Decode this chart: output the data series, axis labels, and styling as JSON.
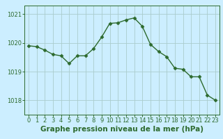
{
  "x": [
    0,
    1,
    2,
    3,
    4,
    5,
    6,
    7,
    8,
    9,
    10,
    11,
    12,
    13,
    14,
    15,
    16,
    17,
    18,
    19,
    20,
    21,
    22,
    23
  ],
  "y": [
    1019.9,
    1019.87,
    1019.75,
    1019.6,
    1019.55,
    1019.28,
    1019.55,
    1019.55,
    1019.8,
    1020.2,
    1020.68,
    1020.7,
    1020.8,
    1020.87,
    1020.58,
    1019.95,
    1019.7,
    1019.52,
    1019.12,
    1019.08,
    1018.82,
    1018.82,
    1018.18,
    1018.0
  ],
  "line_color": "#2d6a2d",
  "marker": "D",
  "marker_size": 2.5,
  "marker_linewidth": 0.5,
  "bg_color": "#cceeff",
  "grid_color": "#aacccc",
  "axis_color": "#2d6a2d",
  "tick_label_color": "#2d6a2d",
  "xlabel": "Graphe pression niveau de la mer (hPa)",
  "xlabel_color": "#2d6a2d",
  "xlim": [
    -0.5,
    23.5
  ],
  "ylim": [
    1017.5,
    1021.3
  ],
  "yticks": [
    1018,
    1019,
    1020,
    1021
  ],
  "xticks": [
    0,
    1,
    2,
    3,
    4,
    5,
    6,
    7,
    8,
    9,
    10,
    11,
    12,
    13,
    14,
    15,
    16,
    17,
    18,
    19,
    20,
    21,
    22,
    23
  ],
  "xtick_labels": [
    "0",
    "1",
    "2",
    "3",
    "4",
    "5",
    "6",
    "7",
    "8",
    "9",
    "10",
    "11",
    "12",
    "13",
    "14",
    "15",
    "16",
    "17",
    "18",
    "19",
    "20",
    "21",
    "22",
    "23"
  ],
  "xlabel_fontsize": 7.5,
  "tick_fontsize": 6.0,
  "line_width": 1.0
}
